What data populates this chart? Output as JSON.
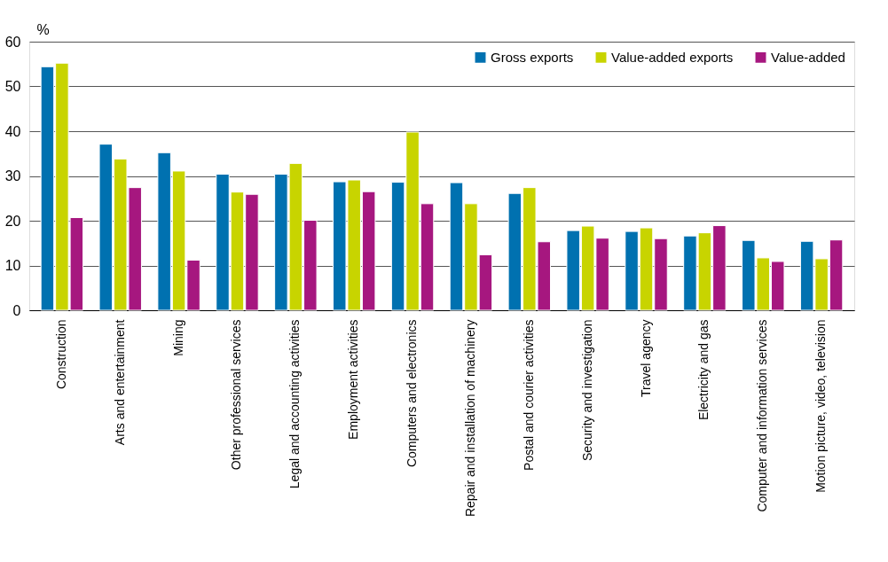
{
  "chart_data": {
    "type": "bar",
    "ylabel": "%",
    "categories": [
      "Construction",
      "Arts and entertainment",
      "Mining",
      "Other professional services",
      "Legal and accounting activities",
      "Employment activities",
      "Computers and electronics",
      "Repair and installation of machinery",
      "Postal and courier activities",
      "Security and investigation",
      "Travel agency",
      "Electricity and gas",
      "Computer and information services",
      "Motion picture, video, television"
    ],
    "series": [
      {
        "name": "Gross exports",
        "color": "#0071b0",
        "values": [
          54.4,
          37.1,
          35.2,
          30.4,
          30.4,
          28.7,
          28.6,
          28.5,
          26.1,
          17.8,
          17.6,
          16.6,
          15.6,
          15.4
        ]
      },
      {
        "name": "Value-added exports",
        "color": "#c8d400",
        "values": [
          55.2,
          33.8,
          31.1,
          26.4,
          32.8,
          29.1,
          39.8,
          23.8,
          27.4,
          18.8,
          18.4,
          17.3,
          11.7,
          11.5
        ]
      },
      {
        "name": "Value-added",
        "color": "#a6177f",
        "values": [
          20.7,
          27.4,
          11.2,
          25.9,
          20.1,
          26.5,
          23.8,
          12.4,
          15.3,
          16.1,
          16.0,
          18.9,
          10.9,
          15.7
        ]
      }
    ],
    "ylim": [
      0,
      60
    ],
    "yticks": [
      0,
      10,
      20,
      30,
      40,
      50,
      60
    ],
    "grid": "y",
    "legend": "top right"
  }
}
